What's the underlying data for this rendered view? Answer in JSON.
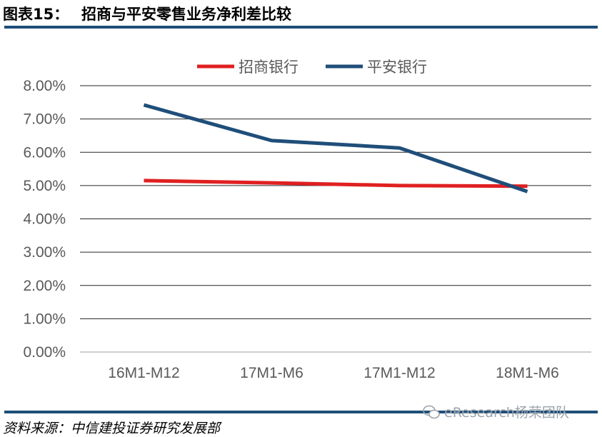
{
  "figure": {
    "label": "图表15：",
    "title": "招商与平安零售业务净利差比较",
    "source": "资料来源：中信建投证券研究发展部",
    "watermark": "eResearch杨荣团队"
  },
  "chart_data": {
    "type": "line",
    "title": "",
    "xlabel": "",
    "ylabel": "",
    "categories": [
      "16M1-M12",
      "17M1-M6",
      "17M1-M12",
      "18M1-M6"
    ],
    "series": [
      {
        "name": "招商银行",
        "color": "#e02021",
        "values": [
          5.15,
          5.08,
          5.0,
          4.98
        ]
      },
      {
        "name": "平安银行",
        "color": "#1f4e79",
        "values": [
          7.42,
          6.35,
          6.13,
          4.82
        ]
      }
    ],
    "ylim": [
      0,
      8
    ],
    "yticks": [
      "0.00%",
      "1.00%",
      "2.00%",
      "3.00%",
      "4.00%",
      "5.00%",
      "6.00%",
      "7.00%",
      "8.00%"
    ],
    "grid": true,
    "legend": "top-center"
  }
}
